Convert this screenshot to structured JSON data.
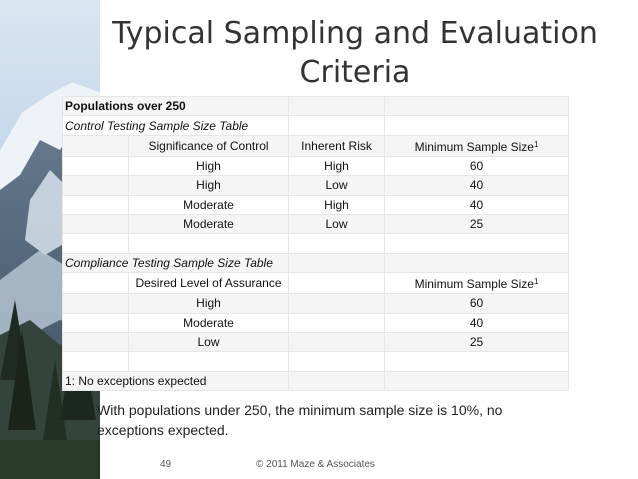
{
  "title": "Typical Sampling and Evaluation Criteria",
  "table": {
    "populations_heading": "Populations over 250",
    "control_table_title": "Control Testing Sample Size Table",
    "control_headers": [
      "Significance of Control",
      "Inherent Risk",
      "Minimum Sample Size"
    ],
    "footnote_marker": "1",
    "control_rows": [
      [
        "High",
        "High",
        "60"
      ],
      [
        "High",
        "Low",
        "40"
      ],
      [
        "Moderate",
        "High",
        "40"
      ],
      [
        "Moderate",
        "Low",
        "25"
      ]
    ],
    "compliance_table_title": "Compliance Testing Sample Size Table",
    "compliance_headers": [
      "Desired Level of Assurance",
      "Minimum Sample Size"
    ],
    "compliance_rows": [
      [
        "High",
        "60"
      ],
      [
        "Moderate",
        "40"
      ],
      [
        "Low",
        "25"
      ]
    ],
    "footnote": "1: No exceptions expected"
  },
  "note": "With populations under 250, the minimum sample size is 10%, no exceptions expected.",
  "footer": {
    "page_number": "49",
    "copyright": "© 2011 Maze & Associates"
  }
}
